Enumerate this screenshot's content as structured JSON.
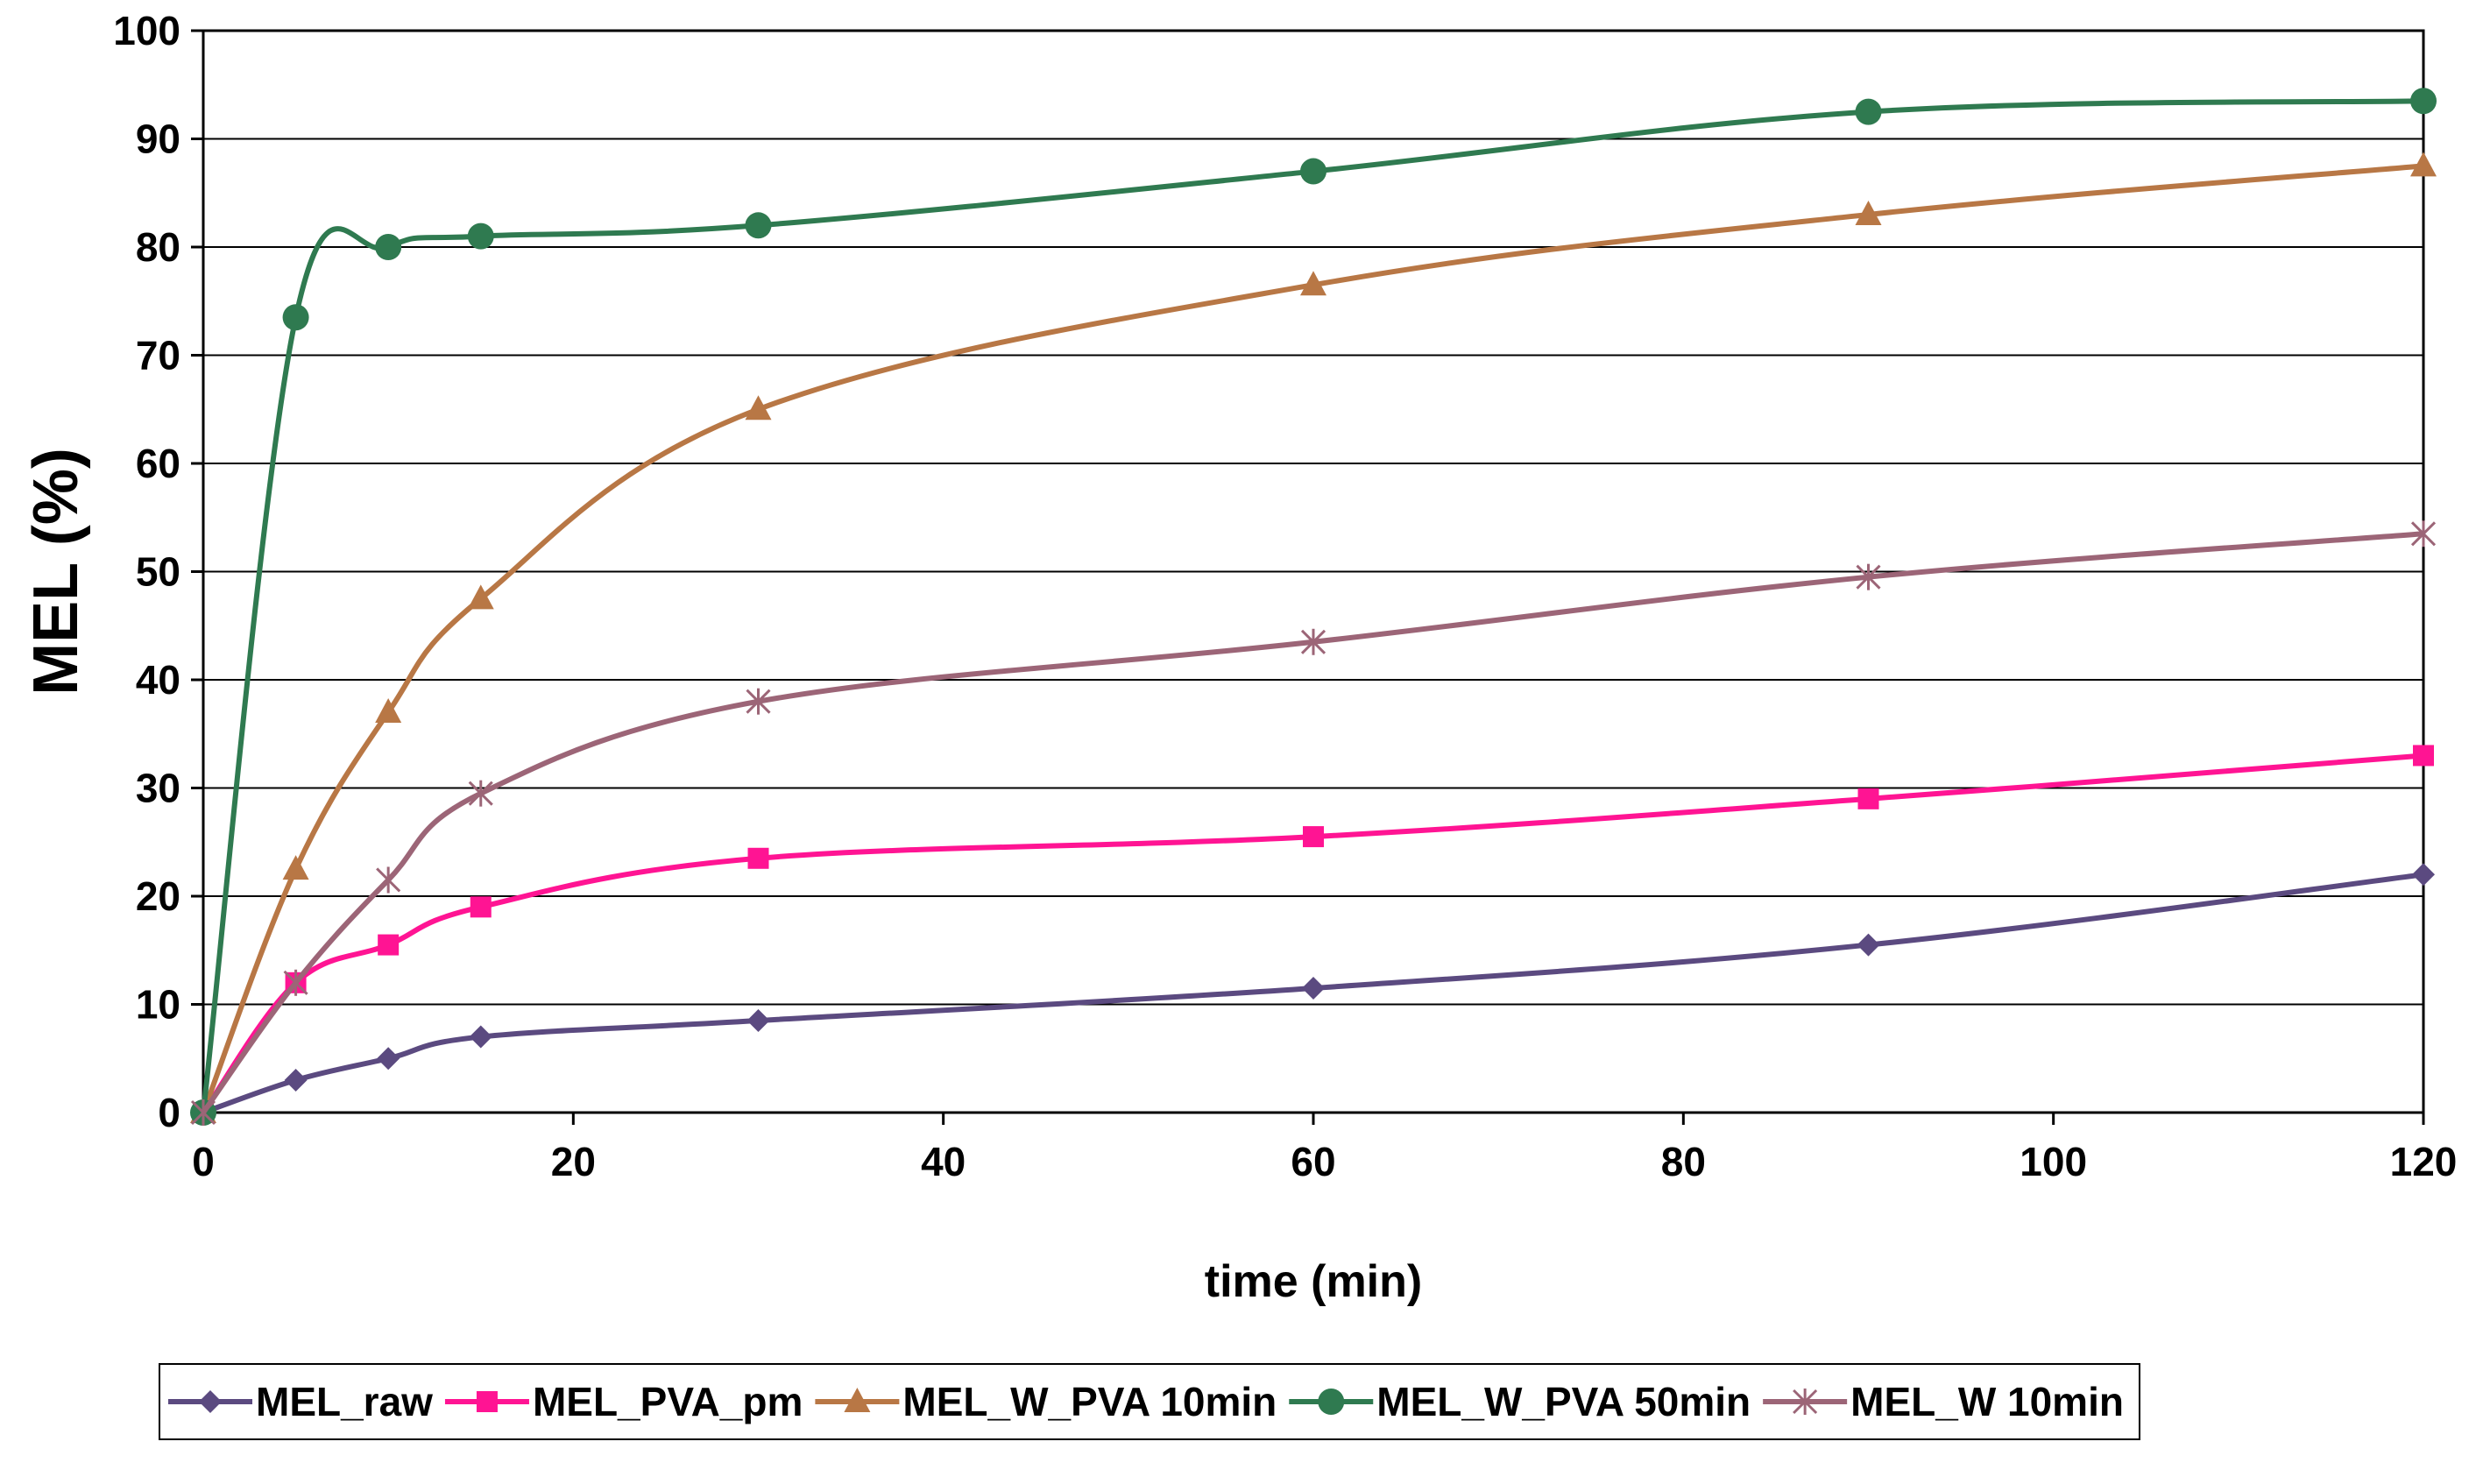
{
  "chart_data": {
    "type": "line",
    "title": "",
    "xlabel": "time (min)",
    "ylabel": "MEL (%)",
    "xlim": [
      0,
      120
    ],
    "ylim": [
      0,
      100
    ],
    "x_ticks": [
      0,
      20,
      40,
      60,
      80,
      100,
      120
    ],
    "y_ticks": [
      0,
      10,
      20,
      30,
      40,
      50,
      60,
      70,
      80,
      90,
      100
    ],
    "grid": "horizontal",
    "legend_position": "bottom",
    "x": [
      0,
      5,
      10,
      15,
      30,
      60,
      90,
      120
    ],
    "series": [
      {
        "name": "MEL_raw",
        "color": "#5b4a80",
        "marker": "diamond",
        "values": [
          0,
          3,
          5,
          7,
          8.5,
          11.5,
          15.5,
          22
        ]
      },
      {
        "name": "MEL_PVA_pm",
        "color": "#ff1493",
        "marker": "square",
        "values": [
          0,
          12,
          15.5,
          19,
          23.5,
          25.5,
          29,
          33
        ]
      },
      {
        "name": "MEL_W_PVA 10min",
        "color": "#b87745",
        "marker": "triangle",
        "values": [
          0,
          22.5,
          37,
          47.5,
          65,
          76.5,
          83,
          87.5
        ]
      },
      {
        "name": "MEL_W_PVA 50min",
        "color": "#2f7a50",
        "marker": "circle",
        "values": [
          0,
          73.5,
          80,
          81,
          82,
          87,
          92.5,
          93.5
        ]
      },
      {
        "name": "MEL_W 10min",
        "color": "#9c6577",
        "marker": "star",
        "values": [
          0,
          12,
          21.5,
          29.5,
          38,
          43.5,
          49.5,
          53.5
        ]
      }
    ]
  }
}
